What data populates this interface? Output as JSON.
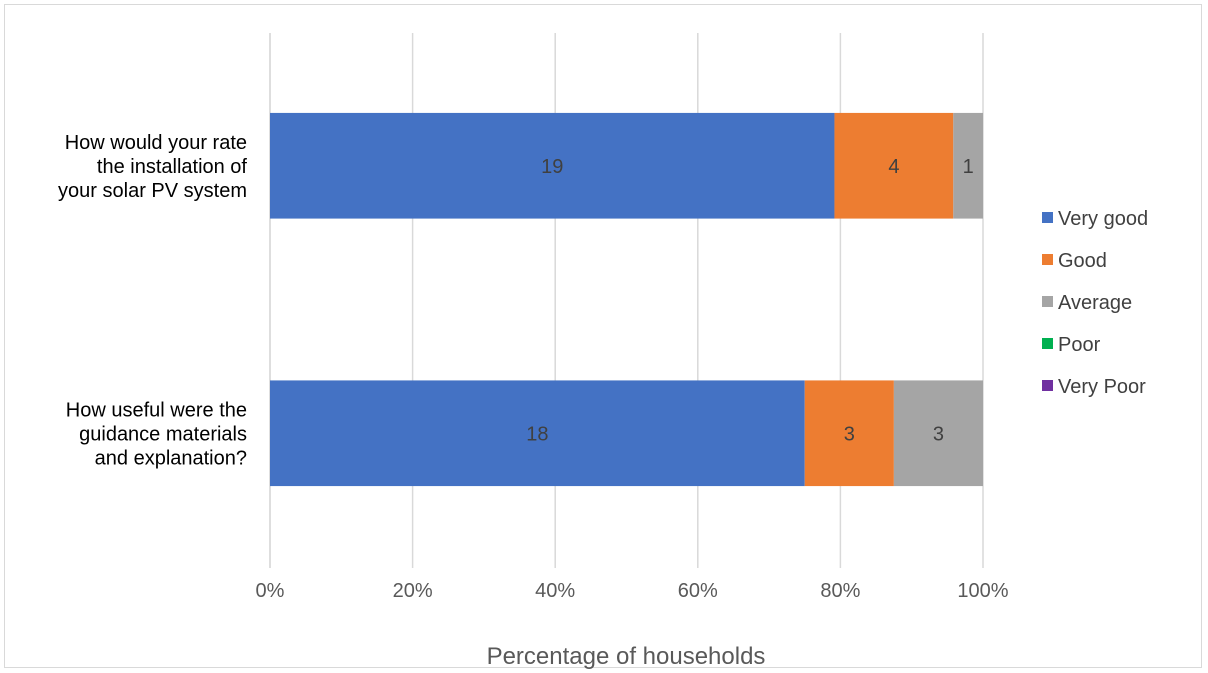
{
  "chart_data": {
    "type": "bar",
    "orientation": "horizontal",
    "stacked": "100%",
    "categories": [
      [
        "How would your rate",
        "the installation of",
        "your solar PV system"
      ],
      [
        "How useful were the",
        "guidance materials",
        "and explanation?"
      ]
    ],
    "series": [
      {
        "name": "Very good",
        "color": "#4472C4",
        "values": [
          19,
          18
        ]
      },
      {
        "name": "Good",
        "color": "#ED7D31",
        "values": [
          4,
          3
        ]
      },
      {
        "name": "Average",
        "color": "#A5A5A5",
        "values": [
          1,
          3
        ]
      },
      {
        "name": "Poor",
        "color": "#00B050",
        "values": [
          0,
          0
        ]
      },
      {
        "name": "Very Poor",
        "color": "#7030A0",
        "values": [
          0,
          0
        ]
      }
    ],
    "xlabel": "Percentage of households",
    "xlim": [
      0,
      100
    ],
    "xticks": [
      "0%",
      "20%",
      "40%",
      "60%",
      "80%",
      "100%"
    ],
    "grid": "vertical",
    "legend_position": "right"
  }
}
